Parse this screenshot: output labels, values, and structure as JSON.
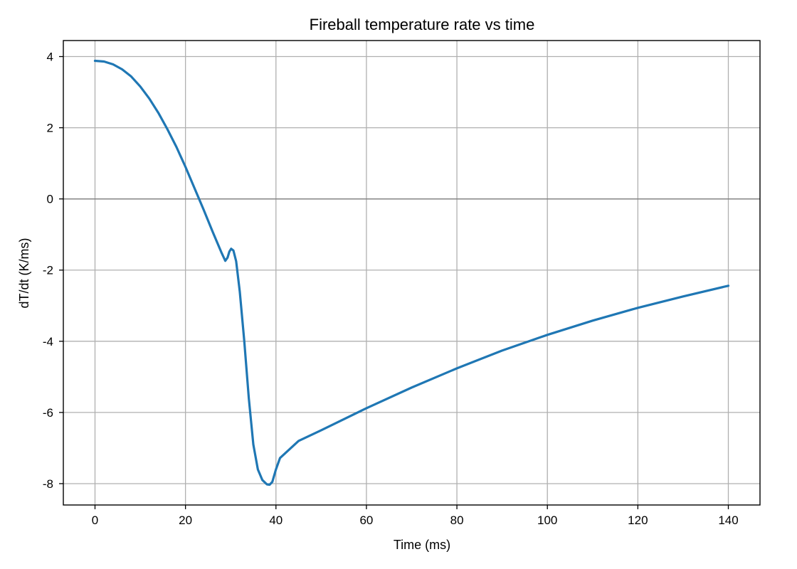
{
  "chart_data": {
    "type": "line",
    "title": "Fireball temperature rate vs time",
    "xlabel": "Time (ms)",
    "ylabel": "dT/dt (K/ms)",
    "xlim": [
      -7,
      147
    ],
    "ylim": [
      -8.6,
      4.45
    ],
    "xticks": [
      0,
      20,
      40,
      60,
      80,
      100,
      120,
      140
    ],
    "yticks": [
      4,
      2,
      0,
      -2,
      -4,
      -6,
      -8
    ],
    "xtick_labels": [
      "0",
      "20",
      "40",
      "60",
      "80",
      "100",
      "120",
      "140"
    ],
    "ytick_labels": [
      "4",
      "2",
      "0",
      "-2",
      "-4",
      "-6",
      "-8"
    ],
    "grid": true,
    "zero_line": true,
    "series": [
      {
        "color": "#1f77b4",
        "points": [
          [
            0,
            3.88
          ],
          [
            2,
            3.86
          ],
          [
            4,
            3.78
          ],
          [
            6,
            3.64
          ],
          [
            8,
            3.44
          ],
          [
            10,
            3.16
          ],
          [
            12,
            2.82
          ],
          [
            14,
            2.42
          ],
          [
            16,
            1.96
          ],
          [
            18,
            1.46
          ],
          [
            20,
            0.9
          ],
          [
            22,
            0.3
          ],
          [
            24,
            -0.3
          ],
          [
            26,
            -0.92
          ],
          [
            27,
            -1.22
          ],
          [
            28,
            -1.52
          ],
          [
            28.8,
            -1.74
          ],
          [
            29.3,
            -1.65
          ],
          [
            29.7,
            -1.48
          ],
          [
            30.1,
            -1.4
          ],
          [
            30.6,
            -1.45
          ],
          [
            31.2,
            -1.75
          ],
          [
            32,
            -2.6
          ],
          [
            33,
            -4.0
          ],
          [
            34,
            -5.6
          ],
          [
            35,
            -6.9
          ],
          [
            36,
            -7.6
          ],
          [
            37,
            -7.9
          ],
          [
            38,
            -8.02
          ],
          [
            38.6,
            -8.03
          ],
          [
            39.2,
            -7.95
          ],
          [
            40,
            -7.6
          ],
          [
            40.9,
            -7.28
          ],
          [
            45,
            -6.8
          ],
          [
            50,
            -6.5
          ],
          [
            60,
            -5.88
          ],
          [
            70,
            -5.3
          ],
          [
            80,
            -4.76
          ],
          [
            90,
            -4.26
          ],
          [
            100,
            -3.82
          ],
          [
            110,
            -3.42
          ],
          [
            120,
            -3.06
          ],
          [
            130,
            -2.74
          ],
          [
            140,
            -2.44
          ]
        ]
      }
    ]
  }
}
